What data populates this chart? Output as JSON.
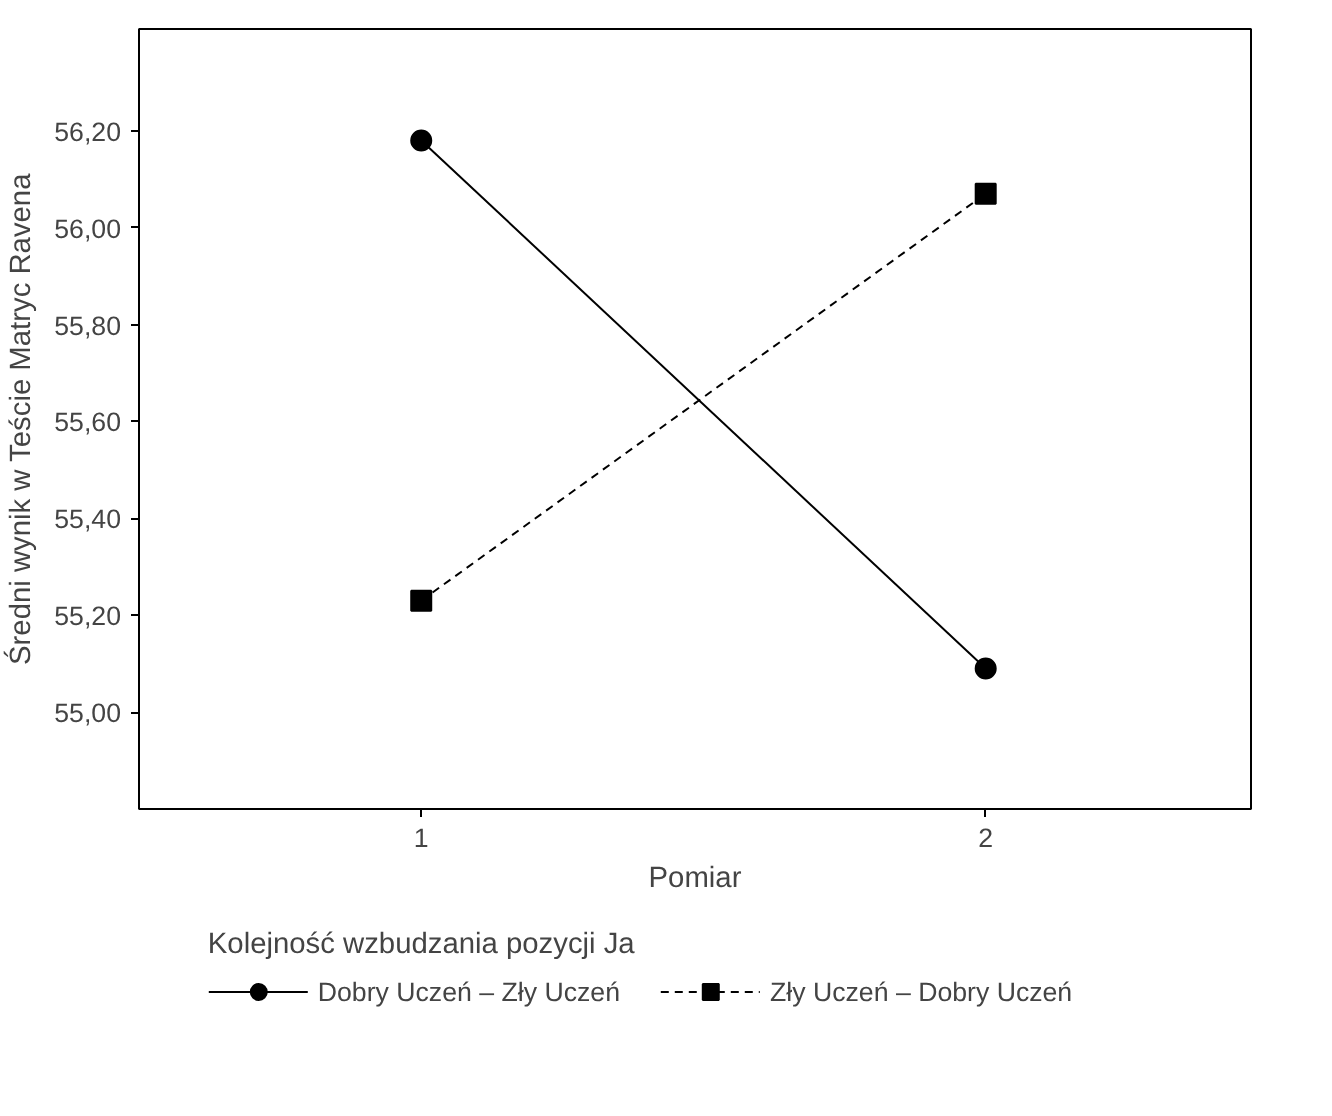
{
  "chart_data": {
    "type": "line",
    "xlabel": "Pomiar",
    "ylabel": "Średni wynik w Teście Matryc Ravena",
    "legend_title": "Kolejność wzbudzania pozycji Ja",
    "x": [
      1,
      2
    ],
    "xlim": [
      0.5,
      2.47
    ],
    "xticks": [
      1,
      2
    ],
    "ylim": [
      54.8,
      56.41
    ],
    "yticks": [
      {
        "value": 55.0,
        "label": "55,00"
      },
      {
        "value": 55.2,
        "label": "55,20"
      },
      {
        "value": 55.4,
        "label": "55,40"
      },
      {
        "value": 55.6,
        "label": "55,60"
      },
      {
        "value": 55.8,
        "label": "55,80"
      },
      {
        "value": 56.0,
        "label": "56,00"
      },
      {
        "value": 56.2,
        "label": "56,20"
      }
    ],
    "series": [
      {
        "name": "Dobry Uczeń – Zły Uczeń",
        "color": "#000000",
        "values": [
          56.18,
          55.09
        ],
        "marker": "circle",
        "line_style": "solid"
      },
      {
        "name": "Zły Uczeń – Dobry Uczeń",
        "color": "#000000",
        "values": [
          55.23,
          56.07
        ],
        "marker": "square",
        "line_style": "dashed"
      }
    ],
    "grid": false,
    "legend": "bottom"
  }
}
